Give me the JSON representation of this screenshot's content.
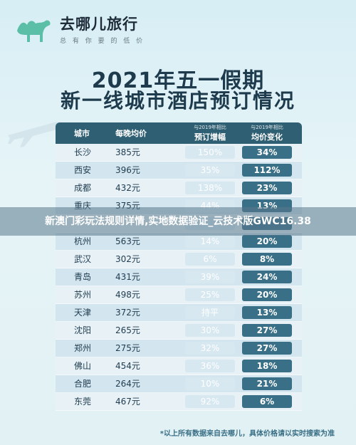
{
  "logo": {
    "title": "去哪儿旅行",
    "subtitle": "总 有 你 要 的 低 价"
  },
  "title": {
    "line1": "2021年五一假期",
    "line2": "新一线城市酒店预订情况"
  },
  "table": {
    "headers": {
      "city": "城市",
      "price": "每晚均价",
      "booking_note": "与2019年相比",
      "booking": "预订增幅",
      "change_note": "与2019年相比",
      "change": "均价变化"
    },
    "rows": [
      {
        "city": "长沙",
        "price": "385元",
        "booking": "150%",
        "change": "34%"
      },
      {
        "city": "西安",
        "price": "396元",
        "booking": "35%",
        "change": "112%"
      },
      {
        "city": "成都",
        "price": "432元",
        "booking": "138%",
        "change": "23%"
      },
      {
        "city": "重庆",
        "price": "375元",
        "booking": "44%",
        "change": "13%"
      },
      {
        "city": "",
        "price": "",
        "booking": "",
        "change": ""
      },
      {
        "city": "杭州",
        "price": "563元",
        "booking": "14%",
        "change": "20%"
      },
      {
        "city": "武汉",
        "price": "302元",
        "booking": "6%",
        "change": "8%"
      },
      {
        "city": "青岛",
        "price": "431元",
        "booking": "39%",
        "change": "24%"
      },
      {
        "city": "苏州",
        "price": "498元",
        "booking": "25%",
        "change": "20%"
      },
      {
        "city": "天津",
        "price": "372元",
        "booking": "持平",
        "change": "13%"
      },
      {
        "city": "沈阳",
        "price": "265元",
        "booking": "30%",
        "change": "27%"
      },
      {
        "city": "郑州",
        "price": "275元",
        "booking": "32%",
        "change": "27%"
      },
      {
        "city": "佛山",
        "price": "454元",
        "booking": "36%",
        "change": "18%"
      },
      {
        "city": "合肥",
        "price": "264元",
        "booking": "10%",
        "change": "21%"
      },
      {
        "city": "东莞",
        "price": "467元",
        "booking": "92%",
        "change": "6%"
      }
    ]
  },
  "banner": "新澳门彩玩法规则详情,实地数据验证_云技术版GWC16.38",
  "footnote": {
    "text": "*以上所有数据来自去哪儿，具体价格请以实时搜索为准"
  },
  "colors": {
    "header_bg": "#2f5f73",
    "change_bg": "#3a7087",
    "logo_green": "#5bbfa8"
  }
}
